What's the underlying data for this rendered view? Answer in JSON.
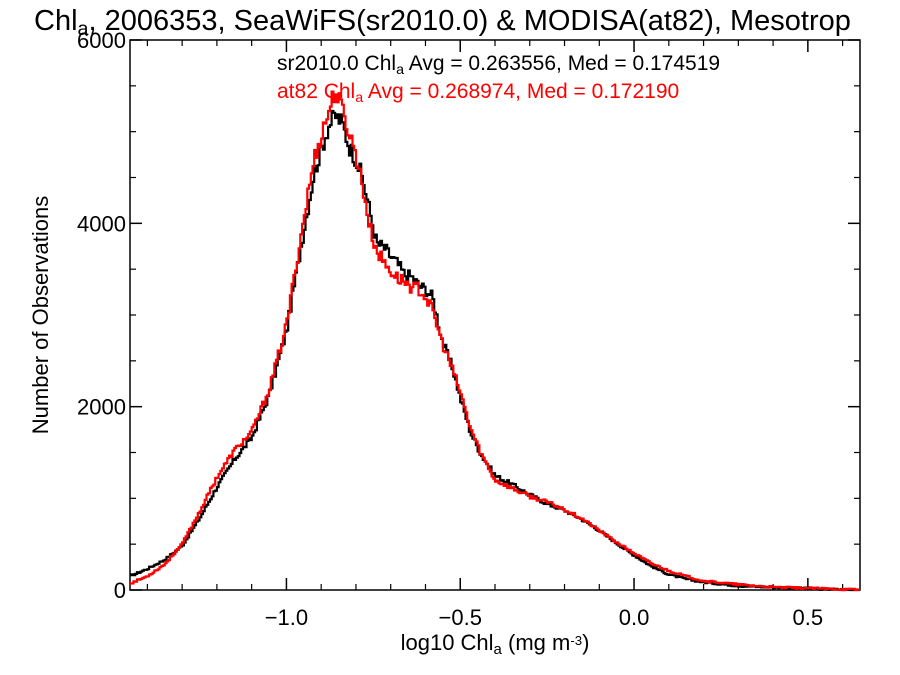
{
  "chart_data": {
    "type": "line",
    "title_parts": [
      "Chl",
      "a",
      ", 2006353, SeaWiFS(sr2010.0) & MODISA(at82), Mesotrop"
    ],
    "xlabel_parts": [
      "log10 Chl",
      "a",
      " (mg m",
      "-3",
      ")"
    ],
    "ylabel": "Number of Observations",
    "xlim": [
      -1.45,
      0.65
    ],
    "ylim": [
      0,
      6000
    ],
    "x_ticks": [
      -1.0,
      -0.5,
      0.0,
      0.5
    ],
    "x_tick_labels": [
      "−1.0",
      "−0.5",
      "0.0",
      "0.5"
    ],
    "y_ticks": [
      0,
      2000,
      4000,
      6000
    ],
    "y_tick_labels": [
      "0",
      "2000",
      "4000",
      "6000"
    ],
    "grid": false,
    "legend_placement": "top-center",
    "series": [
      {
        "name": "sr2010.0",
        "color": "#000000",
        "legend_parts": [
          "sr2010.0 Chl",
          "a",
          " Avg = 0.263556, Med = 0.174519"
        ],
        "x": [
          -1.45,
          -1.4,
          -1.35,
          -1.3,
          -1.25,
          -1.2,
          -1.15,
          -1.1,
          -1.05,
          -1.0,
          -0.95,
          -0.92,
          -0.88,
          -0.86,
          -0.84,
          -0.82,
          -0.8,
          -0.78,
          -0.76,
          -0.74,
          -0.72,
          -0.7,
          -0.68,
          -0.66,
          -0.64,
          -0.62,
          -0.6,
          -0.58,
          -0.55,
          -0.52,
          -0.5,
          -0.47,
          -0.44,
          -0.4,
          -0.35,
          -0.3,
          -0.25,
          -0.2,
          -0.15,
          -0.1,
          -0.05,
          0.0,
          0.05,
          0.1,
          0.15,
          0.2,
          0.3,
          0.4,
          0.5,
          0.6,
          0.65
        ],
        "y": [
          150,
          230,
          330,
          480,
          780,
          1120,
          1420,
          1660,
          2120,
          2820,
          3920,
          4550,
          5050,
          5180,
          5100,
          4850,
          4700,
          4480,
          4130,
          3780,
          3740,
          3640,
          3560,
          3440,
          3420,
          3330,
          3280,
          3200,
          2700,
          2400,
          2100,
          1720,
          1480,
          1250,
          1150,
          1040,
          940,
          870,
          770,
          650,
          510,
          380,
          260,
          170,
          120,
          85,
          45,
          30,
          15,
          5,
          2
        ]
      },
      {
        "name": "at82",
        "color": "#ff0000",
        "legend_parts": [
          "at82 Chl",
          "a",
          " Avg = 0.268974, Med = 0.172190"
        ],
        "x": [
          -1.45,
          -1.4,
          -1.35,
          -1.3,
          -1.25,
          -1.2,
          -1.15,
          -1.1,
          -1.05,
          -1.0,
          -0.95,
          -0.92,
          -0.88,
          -0.86,
          -0.84,
          -0.82,
          -0.8,
          -0.78,
          -0.76,
          -0.74,
          -0.72,
          -0.7,
          -0.68,
          -0.66,
          -0.64,
          -0.62,
          -0.6,
          -0.58,
          -0.55,
          -0.52,
          -0.5,
          -0.47,
          -0.44,
          -0.4,
          -0.35,
          -0.3,
          -0.25,
          -0.2,
          -0.15,
          -0.1,
          -0.05,
          0.0,
          0.05,
          0.1,
          0.15,
          0.2,
          0.3,
          0.4,
          0.5,
          0.6,
          0.65
        ],
        "y": [
          70,
          150,
          280,
          500,
          850,
          1230,
          1520,
          1720,
          2180,
          2880,
          4050,
          4700,
          5200,
          5450,
          5250,
          5000,
          4750,
          4400,
          3950,
          3700,
          3580,
          3480,
          3400,
          3370,
          3300,
          3290,
          3200,
          3050,
          2680,
          2380,
          2160,
          1760,
          1490,
          1200,
          1110,
          1020,
          960,
          880,
          780,
          650,
          520,
          400,
          290,
          210,
          150,
          100,
          60,
          30,
          20,
          8,
          3
        ]
      }
    ]
  }
}
